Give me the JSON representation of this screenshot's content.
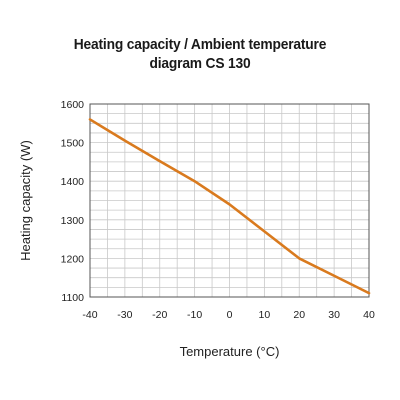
{
  "chart_data": {
    "type": "line",
    "title_lines": [
      "Heating capacity / Ambient temperature",
      "diagram CS 130"
    ],
    "xlabel": "Temperature (°C)",
    "ylabel": "Heating capacity (W)",
    "x_ticks": [
      -40,
      -30,
      -20,
      -10,
      0,
      10,
      20,
      30,
      40
    ],
    "y_ticks": [
      1100,
      1200,
      1300,
      1400,
      1500,
      1600
    ],
    "xlim": [
      -40,
      40
    ],
    "ylim": [
      1100,
      1600
    ],
    "grid": true,
    "series": [
      {
        "color": "#d97a1e",
        "x": [
          -40,
          -30,
          -20,
          -10,
          0,
          10,
          20,
          30,
          40
        ],
        "y": [
          1560,
          1505,
          1452,
          1400,
          1340,
          1270,
          1200,
          1155,
          1110
        ]
      }
    ]
  }
}
